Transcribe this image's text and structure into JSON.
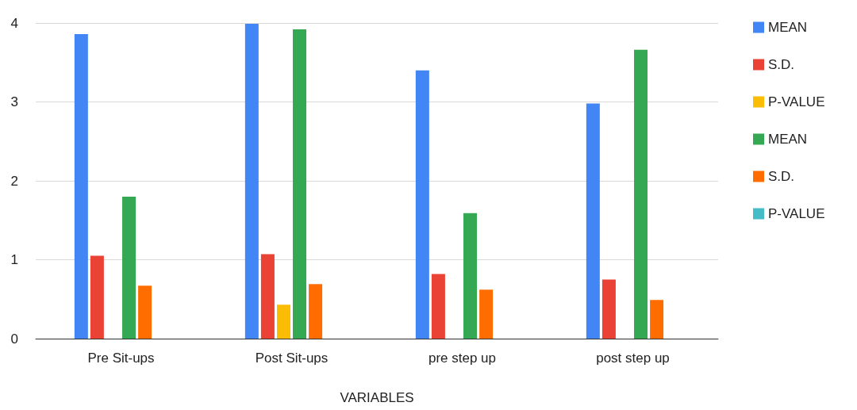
{
  "chart_data": {
    "type": "bar",
    "xlabel": "VARIABLES",
    "categories": [
      "Pre Sit-ups",
      "Post Sit-ups",
      "pre step up",
      "post step up"
    ],
    "series": [
      {
        "name": "MEAN",
        "color": "#4285f4",
        "values": [
          3.86,
          3.99,
          3.4,
          2.98
        ]
      },
      {
        "name": "S.D.",
        "color": "#ea4335",
        "values": [
          1.05,
          1.07,
          0.82,
          0.75
        ]
      },
      {
        "name": "P-VALUE",
        "color": "#fbbc04",
        "values": [
          null,
          0.43,
          null,
          null
        ]
      },
      {
        "name": "MEAN",
        "color": "#34a853",
        "values": [
          1.8,
          3.92,
          1.59,
          3.66
        ]
      },
      {
        "name": "S.D.",
        "color": "#ff6d01",
        "values": [
          0.67,
          0.69,
          0.62,
          0.49
        ]
      },
      {
        "name": "P-VALUE",
        "color": "#46bdc6",
        "values": [
          null,
          null,
          null,
          null
        ]
      }
    ],
    "ylim": [
      0,
      4
    ],
    "yticks": [
      0,
      1,
      2,
      3,
      4
    ],
    "grid": "y",
    "legend": "right"
  }
}
